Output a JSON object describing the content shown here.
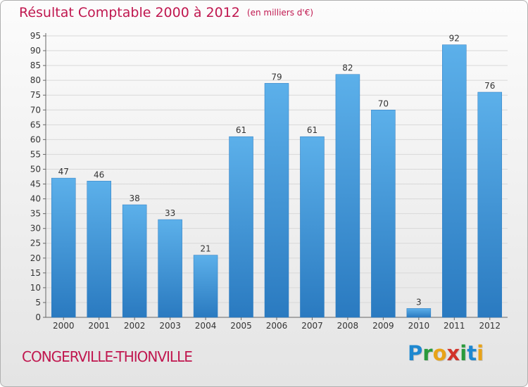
{
  "header": {
    "title": "Résultat Comptable 2000 à 2012",
    "unit": "(en milliers d'€)"
  },
  "footer": {
    "town": "CONGERVILLE-THIONVILLE",
    "brand_letters": [
      {
        "ch": "P",
        "color": "#1e88d0"
      },
      {
        "ch": "r",
        "color": "#2a9a3c"
      },
      {
        "ch": "o",
        "color": "#e8a318"
      },
      {
        "ch": "x",
        "color": "#d2332a"
      },
      {
        "ch": "i",
        "color": "#2a9a3c"
      },
      {
        "ch": "t",
        "color": "#1e88d0"
      },
      {
        "ch": "i",
        "color": "#e8a318"
      }
    ]
  },
  "colors": {
    "accent": "#c0174f",
    "bar_top": "#5cb0ea",
    "bar_bottom": "#2a7ac0",
    "grid": "#d8d8d8"
  },
  "chart_data": {
    "type": "bar",
    "title": "Résultat Comptable 2000 à 2012",
    "categories": [
      "2000",
      "2001",
      "2002",
      "2003",
      "2004",
      "2005",
      "2006",
      "2007",
      "2008",
      "2009",
      "2010",
      "2011",
      "2012"
    ],
    "values": [
      47,
      46,
      38,
      33,
      21,
      61,
      79,
      61,
      82,
      70,
      3,
      92,
      76
    ],
    "ylim": [
      0,
      95
    ],
    "yticks": [
      0,
      5,
      10,
      15,
      20,
      25,
      30,
      35,
      40,
      45,
      50,
      55,
      60,
      65,
      70,
      75,
      80,
      85,
      90,
      95
    ],
    "grid": true,
    "data_labels": true
  }
}
